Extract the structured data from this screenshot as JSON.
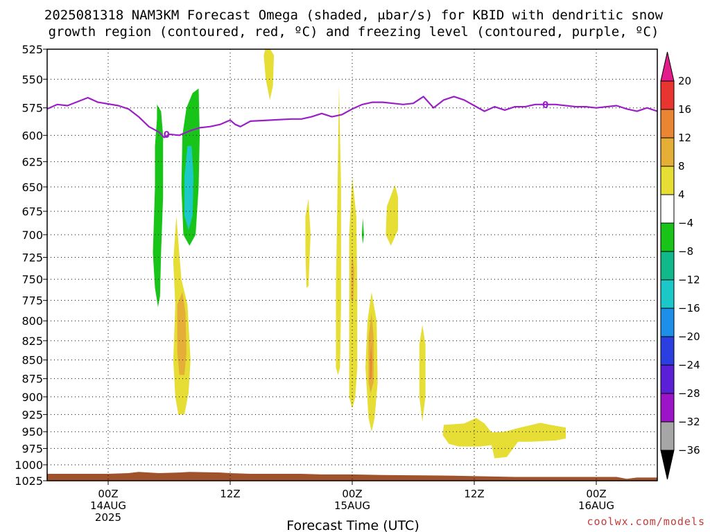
{
  "title": {
    "line1": "2025081318 NAM3KM Forecast Omega (shaded, μbar/s) for KBID with dendritic snow",
    "line2": "growth region (contoured, red, ºC) and freezing level (contoured, purple, ºC)"
  },
  "credit": "coolwx.com/models",
  "colors": {
    "freezing_level": "#9a1fc7",
    "terrain": "#a0522d",
    "omega_pos_4_8": "#e6dd35",
    "omega_pos_8_12": "#e4ae37",
    "omega_pos_12_16": "#e98533",
    "omega_neg_4_8": "#18c418",
    "omega_neg_8_12": "#11b98a",
    "omega_neg_12_16": "#1bc7c7"
  },
  "chart_data": {
    "type": "heatmap",
    "x_label": "Forecast Time (UTC)",
    "x_unit": "hours since 2025-08-13 18Z",
    "x_range": [
      0,
      60
    ],
    "x_ticks": [
      {
        "h": 6,
        "lines": [
          "00Z",
          "14AUG",
          "2025"
        ]
      },
      {
        "h": 18,
        "lines": [
          "12Z"
        ]
      },
      {
        "h": 30,
        "lines": [
          "00Z",
          "15AUG"
        ]
      },
      {
        "h": 42,
        "lines": [
          "12Z"
        ]
      },
      {
        "h": 54,
        "lines": [
          "00Z",
          "16AUG"
        ]
      }
    ],
    "y_unit": "hPa",
    "y_range": [
      525,
      1025
    ],
    "y_scale": "log",
    "y_ticks": [
      525,
      550,
      575,
      600,
      625,
      650,
      675,
      700,
      725,
      750,
      775,
      800,
      825,
      850,
      875,
      900,
      925,
      950,
      975,
      1000,
      1025
    ],
    "grid": true,
    "colorbar": {
      "labels": [
        "20",
        "16",
        "12",
        "8",
        "4",
        "−4",
        "−8",
        "−12",
        "−16",
        "−20",
        "−24",
        "−28",
        "−32",
        "−36"
      ],
      "bands": [
        {
          "range": "16 to 20",
          "color": "#e8352f"
        },
        {
          "range": "12 to 16",
          "color": "#e98533"
        },
        {
          "range": "8 to 12",
          "color": "#e4ae37"
        },
        {
          "range": "4 to 8",
          "color": "#e6dd35"
        },
        {
          "range": "-4 to 4",
          "color": "#ffffff"
        },
        {
          "range": "-8 to -4",
          "color": "#18c418"
        },
        {
          "range": "-12 to -8",
          "color": "#11b98a"
        },
        {
          "range": "-16 to -12",
          "color": "#1bc7c7"
        },
        {
          "range": "-20 to -16",
          "color": "#1e8fe8"
        },
        {
          "range": "-24 to -20",
          "color": "#2b3fe0"
        },
        {
          "range": "-28 to -24",
          "color": "#5b20d6"
        },
        {
          "range": "-32 to -28",
          "color": "#9c14c8"
        },
        {
          "range": "-36 to -32",
          "color": "#a6a6a6"
        }
      ],
      "top_arrow_color": "#e31b8b",
      "bottom_arrow_color": "#000000"
    },
    "freezing_level": {
      "contour_label": "0",
      "points": [
        [
          0,
          576
        ],
        [
          1,
          572
        ],
        [
          2,
          573
        ],
        [
          4,
          566
        ],
        [
          5,
          570
        ],
        [
          7,
          573
        ],
        [
          8,
          576
        ],
        [
          9,
          583
        ],
        [
          10,
          592
        ],
        [
          11,
          597
        ],
        [
          11.5,
          602
        ],
        [
          12,
          599
        ],
        [
          13,
          600
        ],
        [
          14,
          596
        ],
        [
          15,
          593
        ],
        [
          16,
          592
        ],
        [
          17,
          590
        ],
        [
          18,
          586
        ],
        [
          18.5,
          590
        ],
        [
          19,
          592
        ],
        [
          20,
          587
        ],
        [
          22,
          586
        ],
        [
          24,
          585
        ],
        [
          25,
          585
        ],
        [
          26,
          583
        ],
        [
          27,
          580
        ],
        [
          28,
          583
        ],
        [
          29,
          581
        ],
        [
          30,
          576
        ],
        [
          31,
          572
        ],
        [
          32,
          570
        ],
        [
          33,
          570
        ],
        [
          34,
          571
        ],
        [
          35,
          572
        ],
        [
          36,
          571
        ],
        [
          37,
          565
        ],
        [
          38,
          575
        ],
        [
          39,
          568
        ],
        [
          40,
          565
        ],
        [
          41,
          568
        ],
        [
          42,
          573
        ],
        [
          43,
          578
        ],
        [
          44,
          574
        ],
        [
          45,
          577
        ],
        [
          46,
          574
        ],
        [
          47,
          574
        ],
        [
          48,
          572
        ],
        [
          49,
          572
        ],
        [
          50,
          572
        ],
        [
          52,
          574
        ],
        [
          53,
          574
        ],
        [
          54,
          575
        ],
        [
          55,
          574
        ],
        [
          56,
          573
        ],
        [
          57,
          576
        ],
        [
          58,
          578
        ],
        [
          59,
          575
        ],
        [
          60,
          578
        ]
      ]
    },
    "terrain": {
      "points": [
        [
          0,
          1014
        ],
        [
          4,
          1014
        ],
        [
          6,
          1014
        ],
        [
          8,
          1013
        ],
        [
          9,
          1011
        ],
        [
          10,
          1012
        ],
        [
          11,
          1013
        ],
        [
          13,
          1012
        ],
        [
          14,
          1011
        ],
        [
          17,
          1012
        ],
        [
          18,
          1013
        ],
        [
          20,
          1014
        ],
        [
          25,
          1014
        ],
        [
          27,
          1015
        ],
        [
          30,
          1015
        ],
        [
          33,
          1016
        ],
        [
          40,
          1017
        ],
        [
          43,
          1018
        ],
        [
          46,
          1019
        ],
        [
          50,
          1019
        ],
        [
          56,
          1019
        ],
        [
          57,
          1022
        ],
        [
          58,
          1020
        ],
        [
          60,
          1020
        ]
      ]
    },
    "omega_features": [
      {
        "value": -6,
        "polygon": [
          [
            10.8,
            572
          ],
          [
            11.2,
            578
          ],
          [
            11.4,
            600
          ],
          [
            11.4,
            660
          ],
          [
            11.2,
            720
          ],
          [
            11.1,
            770
          ],
          [
            10.9,
            783
          ],
          [
            10.6,
            760
          ],
          [
            10.4,
            720
          ],
          [
            10.6,
            650
          ],
          [
            10.6,
            610
          ],
          [
            10.8,
            585
          ]
        ]
      },
      {
        "value": -6,
        "polygon": [
          [
            14.9,
            558
          ],
          [
            15.0,
            600
          ],
          [
            14.9,
            650
          ],
          [
            14.6,
            700
          ],
          [
            14.0,
            712
          ],
          [
            13.4,
            700
          ],
          [
            13.2,
            650
          ],
          [
            13.3,
            600
          ],
          [
            13.7,
            575
          ],
          [
            14.3,
            562
          ]
        ]
      },
      {
        "value": -14,
        "polygon": [
          [
            14.2,
            610
          ],
          [
            14.4,
            640
          ],
          [
            14.3,
            680
          ],
          [
            13.9,
            695
          ],
          [
            13.5,
            680
          ],
          [
            13.5,
            640
          ],
          [
            13.8,
            610
          ]
        ]
      },
      {
        "value": -6,
        "polygon": [
          [
            31.05,
            682
          ],
          [
            31.15,
            700
          ],
          [
            31.05,
            710
          ],
          [
            30.95,
            700
          ]
        ]
      },
      {
        "value": 6,
        "polygon": [
          [
            12.7,
            680
          ],
          [
            13.2,
            750
          ],
          [
            13.8,
            780
          ],
          [
            14.1,
            850
          ],
          [
            13.9,
            895
          ],
          [
            13.5,
            925
          ],
          [
            12.9,
            925
          ],
          [
            12.6,
            900
          ],
          [
            12.4,
            850
          ],
          [
            12.6,
            780
          ],
          [
            12.4,
            730
          ]
        ]
      },
      {
        "value": 10,
        "polygon": [
          [
            13.3,
            765
          ],
          [
            13.6,
            790
          ],
          [
            13.7,
            840
          ],
          [
            13.5,
            870
          ],
          [
            13.0,
            870
          ],
          [
            12.8,
            840
          ],
          [
            12.8,
            780
          ]
        ]
      },
      {
        "value": 6,
        "polygon": [
          [
            21.6,
            520
          ],
          [
            22.3,
            530
          ],
          [
            22.2,
            556
          ],
          [
            21.9,
            568
          ],
          [
            21.5,
            550
          ],
          [
            21.3,
            530
          ]
        ]
      },
      {
        "value": 6,
        "polygon": [
          [
            25.7,
            662
          ],
          [
            25.9,
            700
          ],
          [
            25.7,
            758
          ],
          [
            25.5,
            760
          ],
          [
            25.4,
            720
          ],
          [
            25.4,
            680
          ]
        ]
      },
      {
        "value": 6,
        "polygon": [
          [
            28.7,
            555
          ],
          [
            28.9,
            650
          ],
          [
            28.9,
            780
          ],
          [
            28.8,
            860
          ],
          [
            28.6,
            870
          ],
          [
            28.4,
            860
          ],
          [
            28.4,
            760
          ],
          [
            28.6,
            620
          ]
        ]
      },
      {
        "value": 6,
        "polygon": [
          [
            30.0,
            640
          ],
          [
            30.4,
            680
          ],
          [
            30.5,
            760
          ],
          [
            30.5,
            860
          ],
          [
            30.3,
            900
          ],
          [
            30.0,
            917
          ],
          [
            29.7,
            900
          ],
          [
            29.7,
            800
          ],
          [
            29.7,
            700
          ]
        ]
      },
      {
        "value": 10,
        "polygon": [
          [
            30.0,
            720
          ],
          [
            30.2,
            740
          ],
          [
            30.1,
            775
          ],
          [
            29.9,
            775
          ],
          [
            29.9,
            740
          ]
        ]
      },
      {
        "value": 6,
        "polygon": [
          [
            31.9,
            765
          ],
          [
            32.4,
            800
          ],
          [
            32.5,
            880
          ],
          [
            32.2,
            930
          ],
          [
            31.9,
            950
          ],
          [
            31.6,
            930
          ],
          [
            31.3,
            860
          ],
          [
            31.5,
            800
          ]
        ]
      },
      {
        "value": 10,
        "polygon": [
          [
            31.9,
            790
          ],
          [
            32.1,
            820
          ],
          [
            32.1,
            880
          ],
          [
            31.8,
            895
          ],
          [
            31.6,
            880
          ],
          [
            31.6,
            820
          ]
        ]
      },
      {
        "value": 14,
        "polygon": [
          [
            31.85,
            830
          ],
          [
            31.95,
            850
          ],
          [
            31.9,
            875
          ],
          [
            31.75,
            875
          ],
          [
            31.75,
            850
          ]
        ]
      },
      {
        "value": 6,
        "polygon": [
          [
            34.2,
            648
          ],
          [
            34.5,
            660
          ],
          [
            34.5,
            695
          ],
          [
            33.8,
            712
          ],
          [
            33.3,
            700
          ],
          [
            33.4,
            670
          ]
        ]
      },
      {
        "value": 6,
        "polygon": [
          [
            36.9,
            805
          ],
          [
            37.2,
            830
          ],
          [
            37.2,
            900
          ],
          [
            36.9,
            935
          ],
          [
            36.6,
            900
          ],
          [
            36.6,
            830
          ]
        ]
      },
      {
        "value": 6,
        "polygon": [
          [
            39.0,
            940
          ],
          [
            41.0,
            938
          ],
          [
            42.2,
            930
          ],
          [
            43.0,
            938
          ],
          [
            43.7,
            951
          ],
          [
            45.0,
            950
          ],
          [
            46.5,
            944
          ],
          [
            48.5,
            937
          ],
          [
            49.5,
            940
          ],
          [
            51.0,
            944
          ],
          [
            51.0,
            960
          ],
          [
            50.0,
            963
          ],
          [
            47.5,
            965
          ],
          [
            46.3,
            965
          ],
          [
            45.2,
            988
          ],
          [
            44.0,
            990
          ],
          [
            43.7,
            970
          ],
          [
            42.5,
            972
          ],
          [
            40.5,
            972
          ],
          [
            39.5,
            968
          ],
          [
            38.9,
            955
          ]
        ]
      }
    ]
  }
}
